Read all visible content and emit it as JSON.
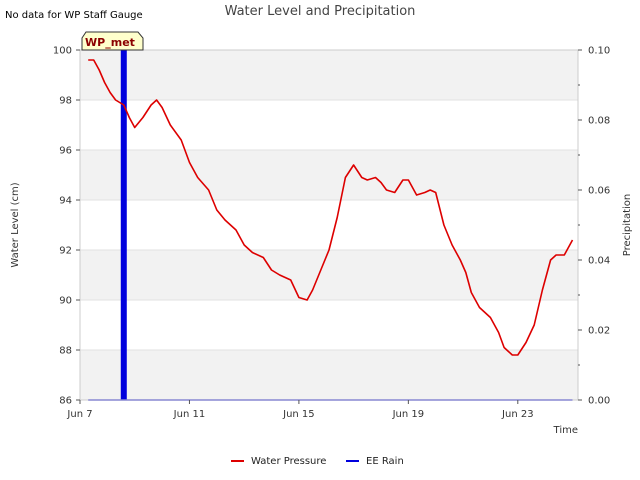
{
  "chart_data": {
    "type": "line",
    "title": "Water Level and Precipitation",
    "note": "No data for WP Staff Gauge",
    "badge": "WP_met",
    "xlabel": "Time",
    "ylabel": "Water Level (cm)",
    "y2label": "Precipitation",
    "xlim": [
      0,
      18.2
    ],
    "ylim": [
      86,
      100
    ],
    "y2lim": [
      0,
      0.1
    ],
    "x_ticks": [
      {
        "x": 0,
        "label": "Jun 7"
      },
      {
        "x": 4,
        "label": "Jun 11"
      },
      {
        "x": 8,
        "label": "Jun 15"
      },
      {
        "x": 12,
        "label": "Jun 19"
      },
      {
        "x": 16,
        "label": "Jun 23"
      }
    ],
    "y_ticks": [
      "86",
      "88",
      "90",
      "92",
      "94",
      "96",
      "98",
      "100"
    ],
    "y2_ticks": [
      "0.00",
      "0.02",
      "0.04",
      "0.06",
      "0.08",
      "0.10"
    ],
    "grid": true,
    "legend_position": "bottom-center",
    "colors": {
      "water": "#dd0000",
      "rain": "#0000dd",
      "band": "#f2f2f2"
    },
    "series": [
      {
        "name": "Water Pressure",
        "axis": "left",
        "points": [
          [
            0.3,
            99.6
          ],
          [
            0.5,
            99.6
          ],
          [
            0.7,
            99.2
          ],
          [
            0.9,
            98.7
          ],
          [
            1.1,
            98.3
          ],
          [
            1.3,
            98.0
          ],
          [
            1.6,
            97.8
          ],
          [
            1.8,
            97.3
          ],
          [
            2.0,
            96.9
          ],
          [
            2.3,
            97.3
          ],
          [
            2.6,
            97.8
          ],
          [
            2.8,
            98.0
          ],
          [
            3.0,
            97.7
          ],
          [
            3.3,
            97.0
          ],
          [
            3.7,
            96.4
          ],
          [
            4.0,
            95.5
          ],
          [
            4.3,
            94.9
          ],
          [
            4.7,
            94.4
          ],
          [
            5.0,
            93.6
          ],
          [
            5.3,
            93.2
          ],
          [
            5.7,
            92.8
          ],
          [
            6.0,
            92.2
          ],
          [
            6.3,
            91.9
          ],
          [
            6.7,
            91.7
          ],
          [
            7.0,
            91.2
          ],
          [
            7.3,
            91.0
          ],
          [
            7.7,
            90.8
          ],
          [
            8.0,
            90.1
          ],
          [
            8.3,
            90.0
          ],
          [
            8.5,
            90.4
          ],
          [
            8.8,
            91.2
          ],
          [
            9.1,
            92.0
          ],
          [
            9.4,
            93.3
          ],
          [
            9.7,
            94.9
          ],
          [
            10.0,
            95.4
          ],
          [
            10.3,
            94.9
          ],
          [
            10.5,
            94.8
          ],
          [
            10.8,
            94.9
          ],
          [
            11.0,
            94.7
          ],
          [
            11.2,
            94.4
          ],
          [
            11.5,
            94.3
          ],
          [
            11.8,
            94.8
          ],
          [
            12.0,
            94.8
          ],
          [
            12.3,
            94.2
          ],
          [
            12.6,
            94.3
          ],
          [
            12.8,
            94.4
          ],
          [
            13.0,
            94.3
          ],
          [
            13.3,
            93.0
          ],
          [
            13.6,
            92.2
          ],
          [
            13.9,
            91.6
          ],
          [
            14.1,
            91.1
          ],
          [
            14.3,
            90.3
          ],
          [
            14.6,
            89.7
          ],
          [
            15.0,
            89.3
          ],
          [
            15.3,
            88.7
          ],
          [
            15.5,
            88.1
          ],
          [
            15.8,
            87.8
          ],
          [
            16.0,
            87.8
          ],
          [
            16.3,
            88.3
          ],
          [
            16.6,
            89.0
          ],
          [
            16.9,
            90.4
          ],
          [
            17.2,
            91.6
          ],
          [
            17.4,
            91.8
          ],
          [
            17.7,
            91.8
          ],
          [
            18.0,
            92.4
          ]
        ]
      },
      {
        "name": "EE Rain",
        "axis": "right",
        "baseline": [
          0.3,
          18.0
        ],
        "bars": [
          [
            1.6,
            0.1
          ]
        ]
      }
    ]
  }
}
